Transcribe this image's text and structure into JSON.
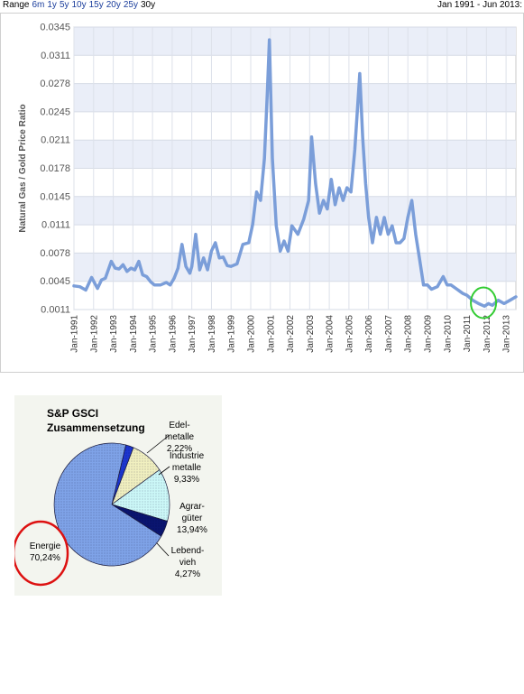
{
  "toolbar": {
    "range_label": "Range",
    "options": [
      "6m",
      "1y",
      "5y",
      "10y",
      "15y",
      "20y",
      "25y",
      "30y"
    ],
    "selected": "30y",
    "date_range": "Jan 1991 - Jun 2013:"
  },
  "chart_data": [
    {
      "type": "line",
      "ylabel": "Natural Gas / Gold Price Ratio",
      "ylim": [
        0.0011,
        0.0345
      ],
      "yticks": [
        "0.0011",
        "0.0045",
        "0.0078",
        "0.0111",
        "0.0145",
        "0.0178",
        "0.0211",
        "0.0245",
        "0.0278",
        "0.0311",
        "0.0345"
      ],
      "xticks": [
        "Jan-1991",
        "Jan-1992",
        "Jan-1993",
        "Jan-1994",
        "Jan-1995",
        "Jan-1996",
        "Jan-1997",
        "Jan-1998",
        "Jan-1999",
        "Jan-2000",
        "Jan-2001",
        "Jan-2002",
        "Jan-2003",
        "Jan-2004",
        "Jan-2005",
        "Jan-2006",
        "Jan-2007",
        "Jan-2008",
        "Jan-2009",
        "Jan-2010",
        "Jan-2011",
        "Jan-2012",
        "Jan-2013"
      ],
      "xlim": [
        1991.0,
        2013.5
      ],
      "grid": true,
      "line_color": "#7b9ed9",
      "highlight_circle_color": "#33cc33",
      "x": [
        1991.0,
        1991.3,
        1991.6,
        1991.9,
        1992.2,
        1992.4,
        1992.6,
        1992.9,
        1993.1,
        1993.3,
        1993.5,
        1993.7,
        1993.9,
        1994.1,
        1994.3,
        1994.5,
        1994.7,
        1994.9,
        1995.1,
        1995.4,
        1995.7,
        1995.9,
        1996.1,
        1996.3,
        1996.5,
        1996.7,
        1996.9,
        1997.0,
        1997.2,
        1997.4,
        1997.6,
        1997.8,
        1998.0,
        1998.2,
        1998.4,
        1998.6,
        1998.8,
        1999.0,
        1999.3,
        1999.6,
        1999.9,
        2000.1,
        2000.3,
        2000.5,
        2000.7,
        2000.85,
        2000.95,
        2001.1,
        2001.3,
        2001.5,
        2001.7,
        2001.9,
        2002.1,
        2002.4,
        2002.7,
        2002.95,
        2003.1,
        2003.3,
        2003.5,
        2003.7,
        2003.9,
        2004.1,
        2004.3,
        2004.5,
        2004.7,
        2004.9,
        2005.1,
        2005.3,
        2005.55,
        2005.7,
        2005.85,
        2006.0,
        2006.2,
        2006.4,
        2006.6,
        2006.8,
        2007.0,
        2007.2,
        2007.4,
        2007.6,
        2007.8,
        2008.0,
        2008.2,
        2008.4,
        2008.6,
        2008.8,
        2009.0,
        2009.2,
        2009.5,
        2009.8,
        2010.0,
        2010.2,
        2010.5,
        2010.8,
        2011.0,
        2011.3,
        2011.6,
        2011.9,
        2012.1,
        2012.3,
        2012.6,
        2012.9,
        2013.2,
        2013.5
      ],
      "y": [
        0.0039,
        0.0038,
        0.0034,
        0.0049,
        0.0036,
        0.0046,
        0.0048,
        0.0068,
        0.006,
        0.0059,
        0.0064,
        0.0056,
        0.006,
        0.0058,
        0.0068,
        0.0052,
        0.005,
        0.0044,
        0.004,
        0.004,
        0.0043,
        0.004,
        0.0048,
        0.006,
        0.0088,
        0.0062,
        0.0054,
        0.0062,
        0.01,
        0.0058,
        0.0072,
        0.0058,
        0.008,
        0.009,
        0.0072,
        0.0073,
        0.0063,
        0.0062,
        0.0065,
        0.0088,
        0.009,
        0.0112,
        0.015,
        0.014,
        0.019,
        0.027,
        0.033,
        0.019,
        0.011,
        0.008,
        0.0092,
        0.008,
        0.011,
        0.01,
        0.0118,
        0.014,
        0.0215,
        0.016,
        0.0125,
        0.014,
        0.013,
        0.0165,
        0.0135,
        0.0155,
        0.014,
        0.0155,
        0.015,
        0.02,
        0.029,
        0.0215,
        0.016,
        0.012,
        0.009,
        0.012,
        0.01,
        0.012,
        0.01,
        0.011,
        0.009,
        0.009,
        0.0095,
        0.012,
        0.014,
        0.01,
        0.007,
        0.004,
        0.004,
        0.0035,
        0.0038,
        0.005,
        0.004,
        0.004,
        0.0035,
        0.003,
        0.0028,
        0.0022,
        0.0018,
        0.0015,
        0.0018,
        0.0016,
        0.0022,
        0.0018,
        0.0022,
        0.0026
      ]
    },
    {
      "type": "pie",
      "title": "S&P GSCI Zusammensetzung",
      "title_lines": [
        "S&P GSCI",
        "Zusammensetzung"
      ],
      "slices": [
        {
          "name": "Energie",
          "label_lines": [
            "Energie",
            "70,24%"
          ],
          "value": 70.24,
          "color": "#7fa3e8"
        },
        {
          "name": "Edelmetalle",
          "label_lines": [
            "Edel-",
            "metalle",
            "2,22%"
          ],
          "value": 2.22,
          "color": "#1d36d0"
        },
        {
          "name": "Industriemetalle",
          "label_lines": [
            "Industrie",
            "metalle",
            "9,33%"
          ],
          "value": 9.33,
          "color": "#f1f0c0"
        },
        {
          "name": "Agrargüter",
          "label_lines": [
            "Agrar-",
            "güter",
            "13,94%"
          ],
          "value": 13.94,
          "color": "#ccf8f8"
        },
        {
          "name": "Lebendvieh",
          "label_lines": [
            "Lebend-",
            "vieh",
            "4,27%"
          ],
          "value": 4.27,
          "color": "#0a1570"
        }
      ],
      "highlight_circle_color": "#dd1111"
    }
  ]
}
